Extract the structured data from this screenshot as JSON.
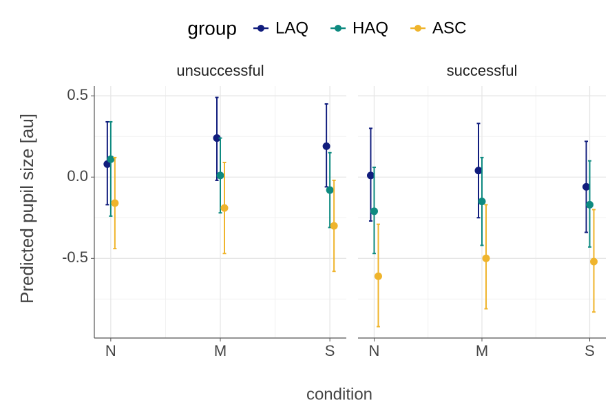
{
  "chart_data": {
    "type": "errorbar",
    "legend_title": "group",
    "y_label": "Predicted pupil size [au]",
    "x_label": "condition",
    "categories": [
      "N",
      "M",
      "S"
    ],
    "ylim": [
      -0.99,
      0.56
    ],
    "yticks": [
      0.5,
      {
        "value": 0,
        "label": "0.0"
      },
      -0.5
    ],
    "grid": true,
    "legend_position": "top",
    "facets": [
      {
        "title": "unsuccessful",
        "series": [
          {
            "name": "LAQ",
            "color": "#111d7d",
            "values": [
              0.08,
              0.24,
              0.19
            ],
            "lower": [
              -0.17,
              -0.02,
              -0.06
            ],
            "upper": [
              0.34,
              0.49,
              0.45
            ]
          },
          {
            "name": "HAQ",
            "color": "#0e8a80",
            "values": [
              0.11,
              0.01,
              -0.08
            ],
            "lower": [
              -0.24,
              -0.22,
              -0.31
            ],
            "upper": [
              0.34,
              0.24,
              0.15
            ]
          },
          {
            "name": "ASC",
            "color": "#efb42c",
            "values": [
              -0.16,
              -0.19,
              -0.3
            ],
            "lower": [
              -0.44,
              -0.47,
              -0.58
            ],
            "upper": [
              0.12,
              0.09,
              -0.02
            ]
          }
        ]
      },
      {
        "title": "successful",
        "series": [
          {
            "name": "LAQ",
            "color": "#111d7d",
            "values": [
              0.01,
              0.04,
              -0.06
            ],
            "lower": [
              -0.27,
              -0.25,
              -0.34
            ],
            "upper": [
              0.3,
              0.33,
              0.22
            ]
          },
          {
            "name": "HAQ",
            "color": "#0e8a80",
            "values": [
              -0.21,
              -0.15,
              -0.17
            ],
            "lower": [
              -0.47,
              -0.42,
              -0.43
            ],
            "upper": [
              0.06,
              0.12,
              0.1
            ]
          },
          {
            "name": "ASC",
            "color": "#efb42c",
            "values": [
              -0.61,
              -0.5,
              -0.52
            ],
            "lower": [
              -0.92,
              -0.81,
              -0.83
            ],
            "upper": [
              -0.29,
              -0.17,
              -0.2
            ]
          }
        ]
      }
    ]
  }
}
